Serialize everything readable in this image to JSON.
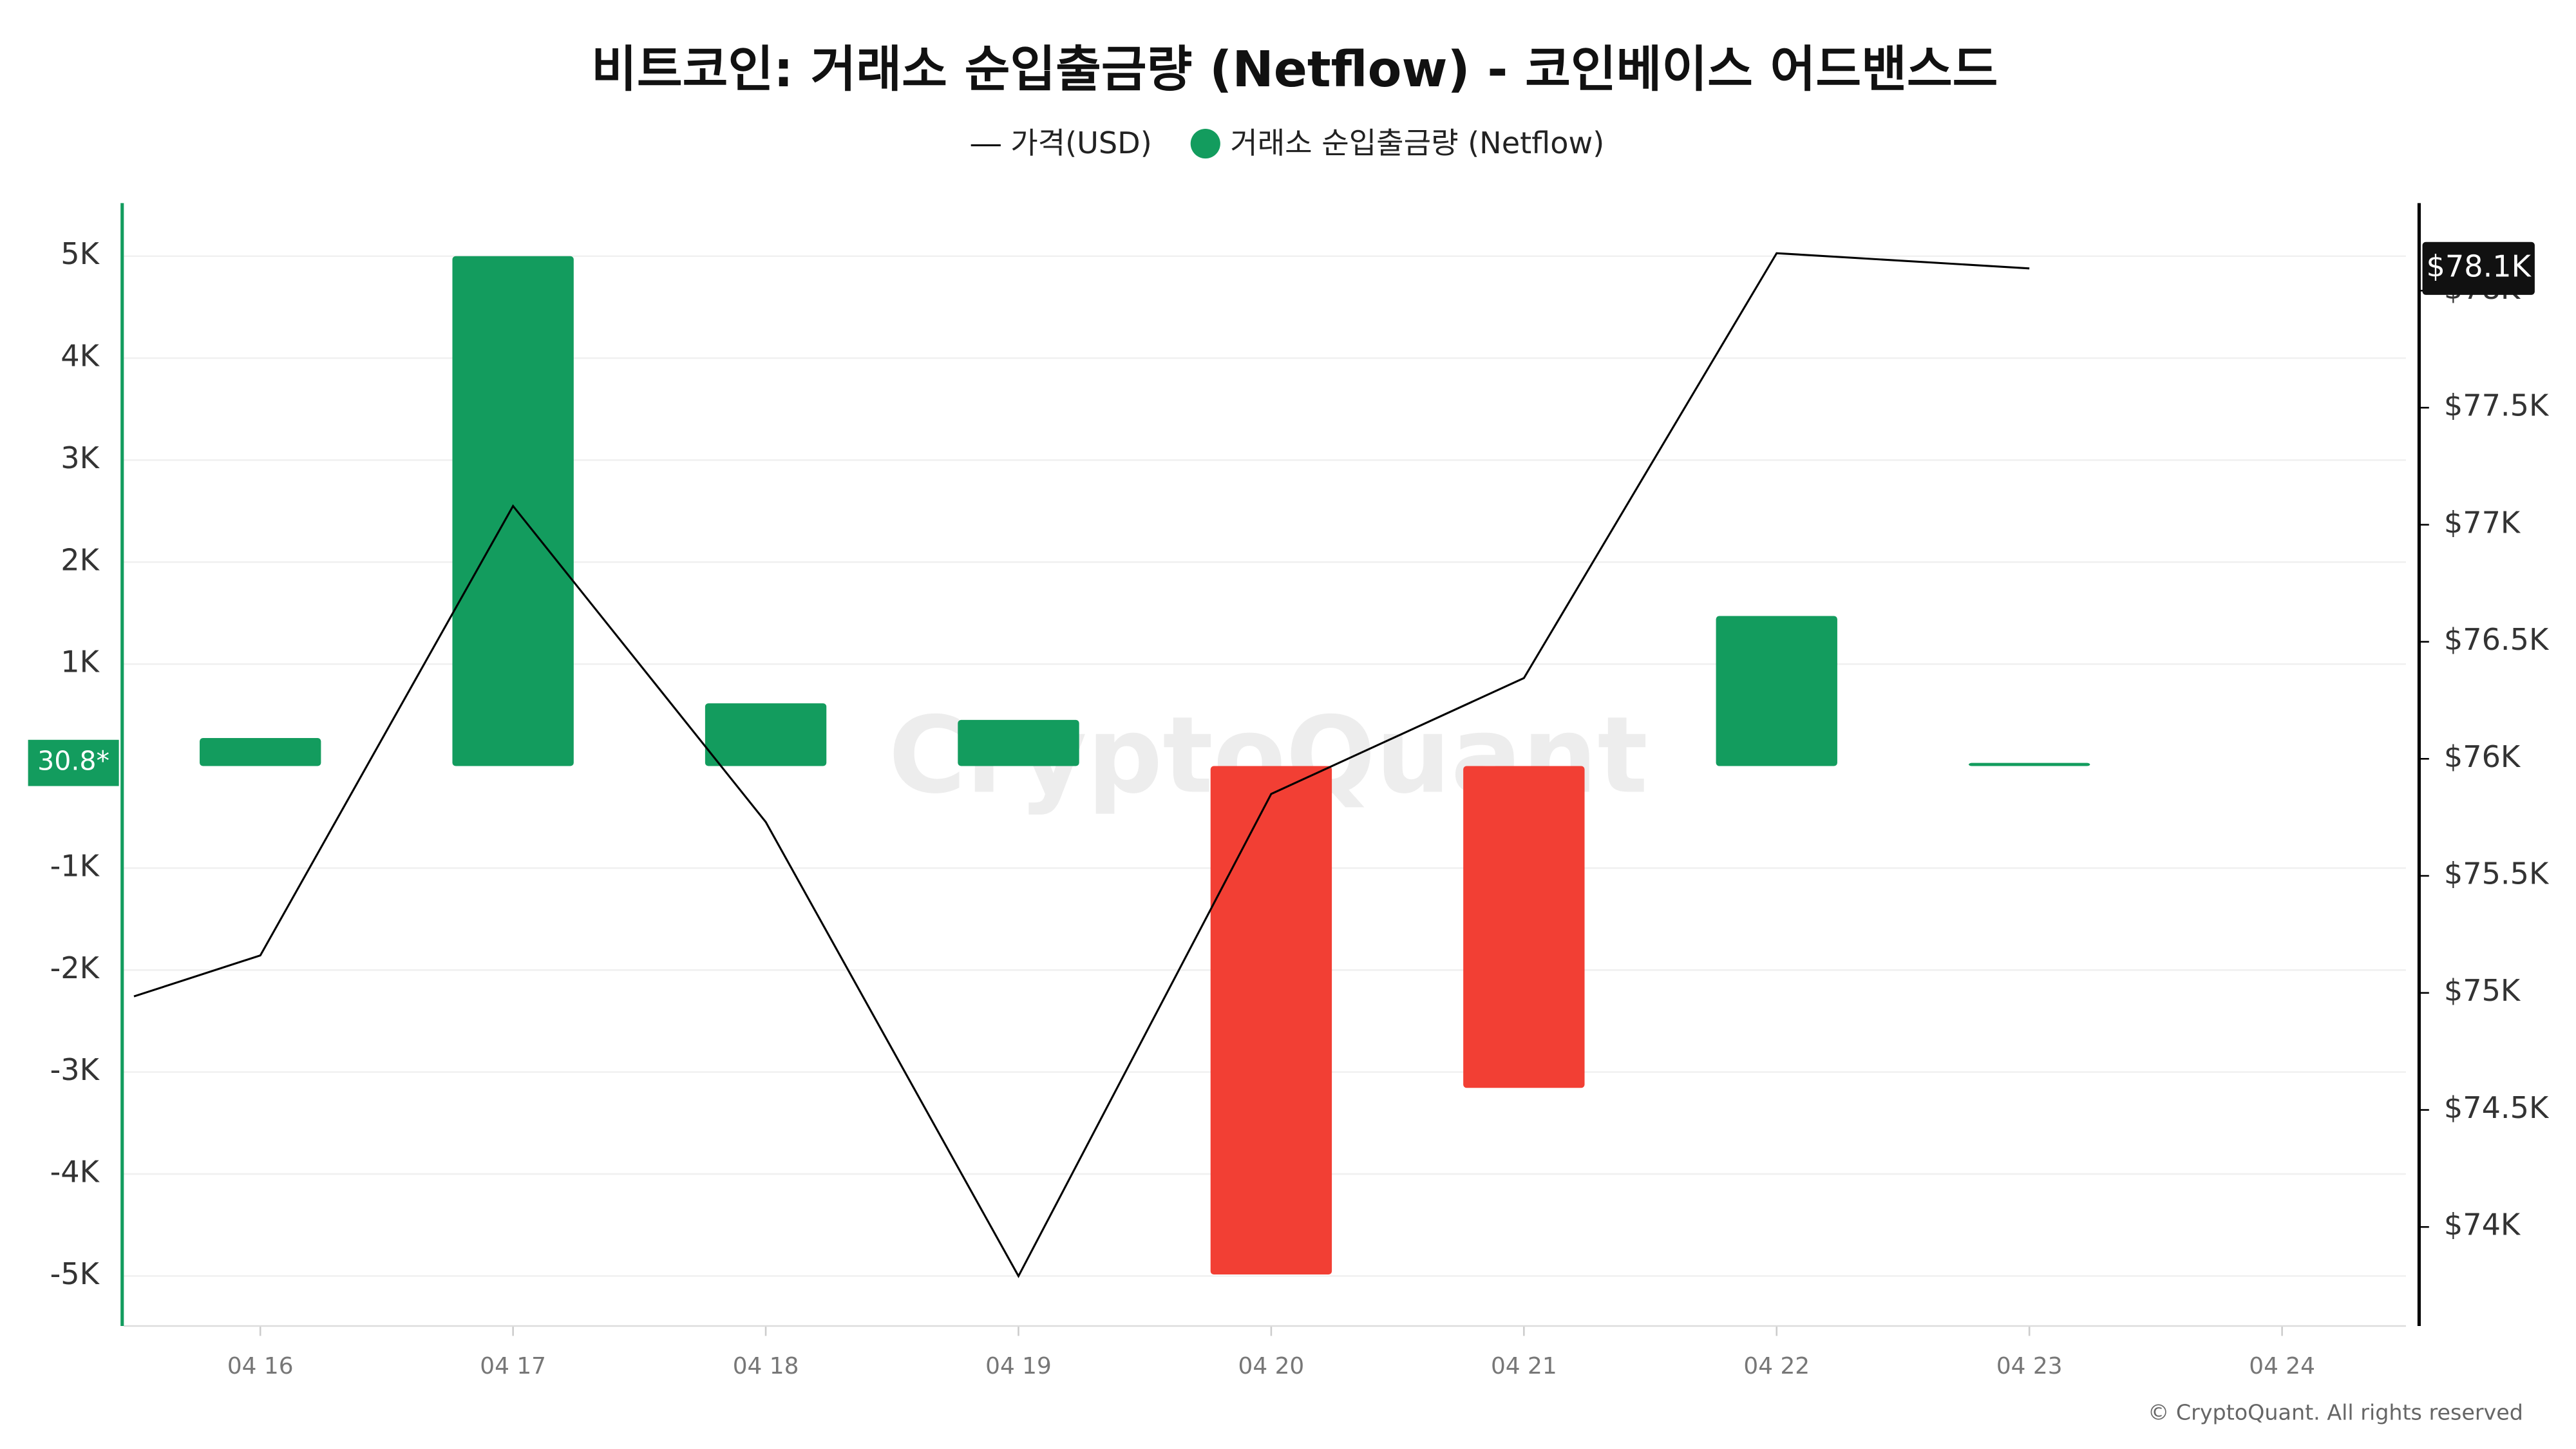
{
  "chart_data": {
    "type": "combo",
    "title": "비트코인: 거래소 순입출금량 (Netflow) - 코인베이스 어드밴스드",
    "watermark": "CryptoQuant",
    "footer": "© CryptoQuant. All rights reserved",
    "xlim": [
      15.46,
      24.49
    ],
    "xticks": [
      {
        "value": 16,
        "label": "04 16"
      },
      {
        "value": 17,
        "label": "04 17"
      },
      {
        "value": 18,
        "label": "04 18"
      },
      {
        "value": 19,
        "label": "04 19"
      },
      {
        "value": 20,
        "label": "04 20"
      },
      {
        "value": 21,
        "label": "04 21"
      },
      {
        "value": 22,
        "label": "04 22"
      },
      {
        "value": 23,
        "label": "04 23"
      },
      {
        "value": 24,
        "label": "04 24"
      }
    ],
    "ylim": [
      -5490,
      5520
    ],
    "yticks": [
      {
        "value": -5000,
        "label": "-5K"
      },
      {
        "value": -4000,
        "label": "-4K"
      },
      {
        "value": -3000,
        "label": "-3K"
      },
      {
        "value": -2000,
        "label": "-2K"
      },
      {
        "value": -1000,
        "label": "-1K"
      },
      {
        "value": 1000,
        "label": "1K"
      },
      {
        "value": 2000,
        "label": "2K"
      },
      {
        "value": 3000,
        "label": "3K"
      },
      {
        "value": 4000,
        "label": "4K"
      },
      {
        "value": 5000,
        "label": "5K"
      }
    ],
    "y2lim": [
      73577,
      78374
    ],
    "y2ticks": [
      {
        "value": 74000,
        "label": "$74K"
      },
      {
        "value": 74500,
        "label": "$74.5K"
      },
      {
        "value": 75000,
        "label": "$75K"
      },
      {
        "value": 75500,
        "label": "$75.5K"
      },
      {
        "value": 76000,
        "label": "$76K"
      },
      {
        "value": 76500,
        "label": "$76.5K"
      },
      {
        "value": 77000,
        "label": "$77K"
      },
      {
        "value": 77500,
        "label": "$77.5K"
      },
      {
        "value": 78000,
        "label": "$78K"
      }
    ],
    "grid": true,
    "current_value_label": "30.8*",
    "current_price_label": "$78.1K",
    "series": [
      {
        "name": "가격(USD)",
        "type": "line",
        "axis": "y2",
        "color": "#000000",
        "x": [
          15.5,
          16,
          17,
          18,
          19,
          20,
          21,
          22,
          23
        ],
        "values": [
          74985,
          75160,
          77080,
          75730,
          73790,
          75850,
          76345,
          78160,
          78095
        ]
      },
      {
        "name": "거래소 순입출금량 (Netflow)",
        "type": "bar",
        "color": "#139c5e",
        "negative_color": "#f23f34",
        "x": [
          16,
          17,
          18,
          19,
          20,
          21,
          22,
          23
        ],
        "values": [
          275,
          5000,
          615,
          453,
          -4985,
          -3155,
          1472,
          30.8
        ]
      }
    ]
  }
}
